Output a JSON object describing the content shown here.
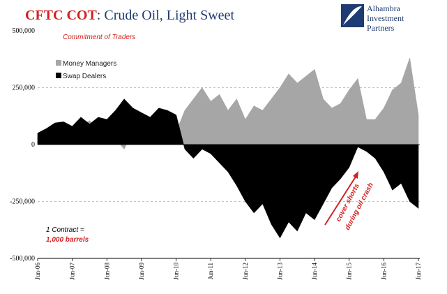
{
  "title": {
    "prefix": "CFTC COT",
    "suffix": ": Crude Oil, Light Sweet",
    "prefix_color": "#d42020",
    "suffix_color": "#1f3b73"
  },
  "logo": {
    "icon": "alhambra-logo-icon",
    "line1": "Alhambra",
    "line2": "Investment",
    "line3": "Partners"
  },
  "annotations": {
    "subtitle": "Commitment of Traders",
    "contract_line1": "1 Contract =",
    "contract_line2": "1,000 barrels",
    "cover_line1": "cover shorts",
    "cover_line2": "during oil crash"
  },
  "colors": {
    "money_managers": "#a6a6a6",
    "swap_dealers": "#000000",
    "accent_red": "#d42020",
    "navy": "#1f3b73"
  },
  "chart_data": {
    "type": "area",
    "legend_position": "top-left",
    "grid": true,
    "ylim": [
      -500000,
      500000
    ],
    "yticks": [
      "500,000",
      "250,000",
      "0",
      "-250,000",
      "-500,000"
    ],
    "x_labels": [
      "Jun-06",
      "Jun-07",
      "Jun-08",
      "Jun-09",
      "Jun-10",
      "Jun-11",
      "Jun-12",
      "Jun-13",
      "Jun-14",
      "Jun-15",
      "Jun-16",
      "Jun-17"
    ],
    "x": [
      2006.42,
      2006.67,
      2006.92,
      2007.17,
      2007.42,
      2007.67,
      2007.92,
      2008.17,
      2008.42,
      2008.67,
      2008.92,
      2009.17,
      2009.42,
      2009.67,
      2009.92,
      2010.17,
      2010.42,
      2010.67,
      2010.92,
      2011.17,
      2011.42,
      2011.67,
      2011.92,
      2012.17,
      2012.42,
      2012.67,
      2012.92,
      2013.17,
      2013.42,
      2013.67,
      2013.92,
      2014.17,
      2014.42,
      2014.67,
      2014.92,
      2015.17,
      2015.42,
      2015.67,
      2015.92,
      2016.17,
      2016.42,
      2016.67,
      2016.92,
      2017.17,
      2017.42
    ],
    "series": [
      {
        "name": "Money Managers",
        "values": [
          30000,
          60000,
          70000,
          85000,
          50000,
          80000,
          105000,
          60000,
          95000,
          25000,
          -20000,
          60000,
          120000,
          120000,
          110000,
          130000,
          55000,
          150000,
          200000,
          250000,
          190000,
          220000,
          150000,
          200000,
          110000,
          170000,
          150000,
          200000,
          250000,
          310000,
          270000,
          300000,
          330000,
          200000,
          160000,
          180000,
          240000,
          290000,
          110000,
          110000,
          160000,
          240000,
          270000,
          380000,
          130000
        ]
      },
      {
        "name": "Swap Dealers",
        "values": [
          50000,
          70000,
          95000,
          100000,
          80000,
          120000,
          90000,
          120000,
          110000,
          150000,
          200000,
          160000,
          140000,
          120000,
          160000,
          150000,
          130000,
          -20000,
          -60000,
          -20000,
          -40000,
          -80000,
          -120000,
          -180000,
          -250000,
          -300000,
          -260000,
          -350000,
          -410000,
          -340000,
          -380000,
          -300000,
          -330000,
          -260000,
          -190000,
          -150000,
          -100000,
          -10000,
          -30000,
          -60000,
          -120000,
          -200000,
          -170000,
          -250000,
          -280000
        ]
      }
    ]
  }
}
